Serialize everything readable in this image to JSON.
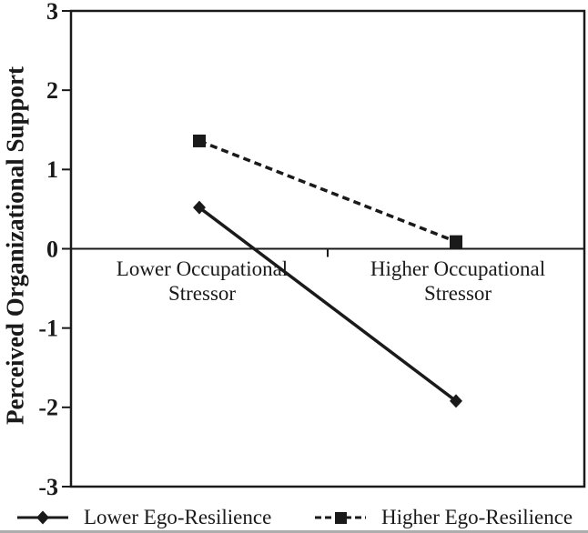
{
  "figure": {
    "background": "#ffffff",
    "ink_color": "#1a1a1a"
  },
  "chart_data": {
    "type": "line",
    "title": "",
    "xlabel": "",
    "ylabel": "Perceived Organizational Support",
    "categories": [
      "Lower Occupational Stressor",
      "Higher Occupational Stressor"
    ],
    "series": [
      {
        "name": "Lower Ego-Resilience",
        "marker": "diamond",
        "line_style": "solid",
        "values": [
          0.52,
          -1.92
        ]
      },
      {
        "name": "Higher Ego-Resilience",
        "marker": "square",
        "line_style": "dashed",
        "values": [
          1.36,
          0.09
        ]
      }
    ],
    "ylim": [
      -3,
      3
    ],
    "yticks": [
      3,
      2,
      1,
      0,
      -1,
      -2,
      -3
    ],
    "x_axis_crosses_at": 0,
    "grid": false,
    "legend_position": "bottom"
  }
}
